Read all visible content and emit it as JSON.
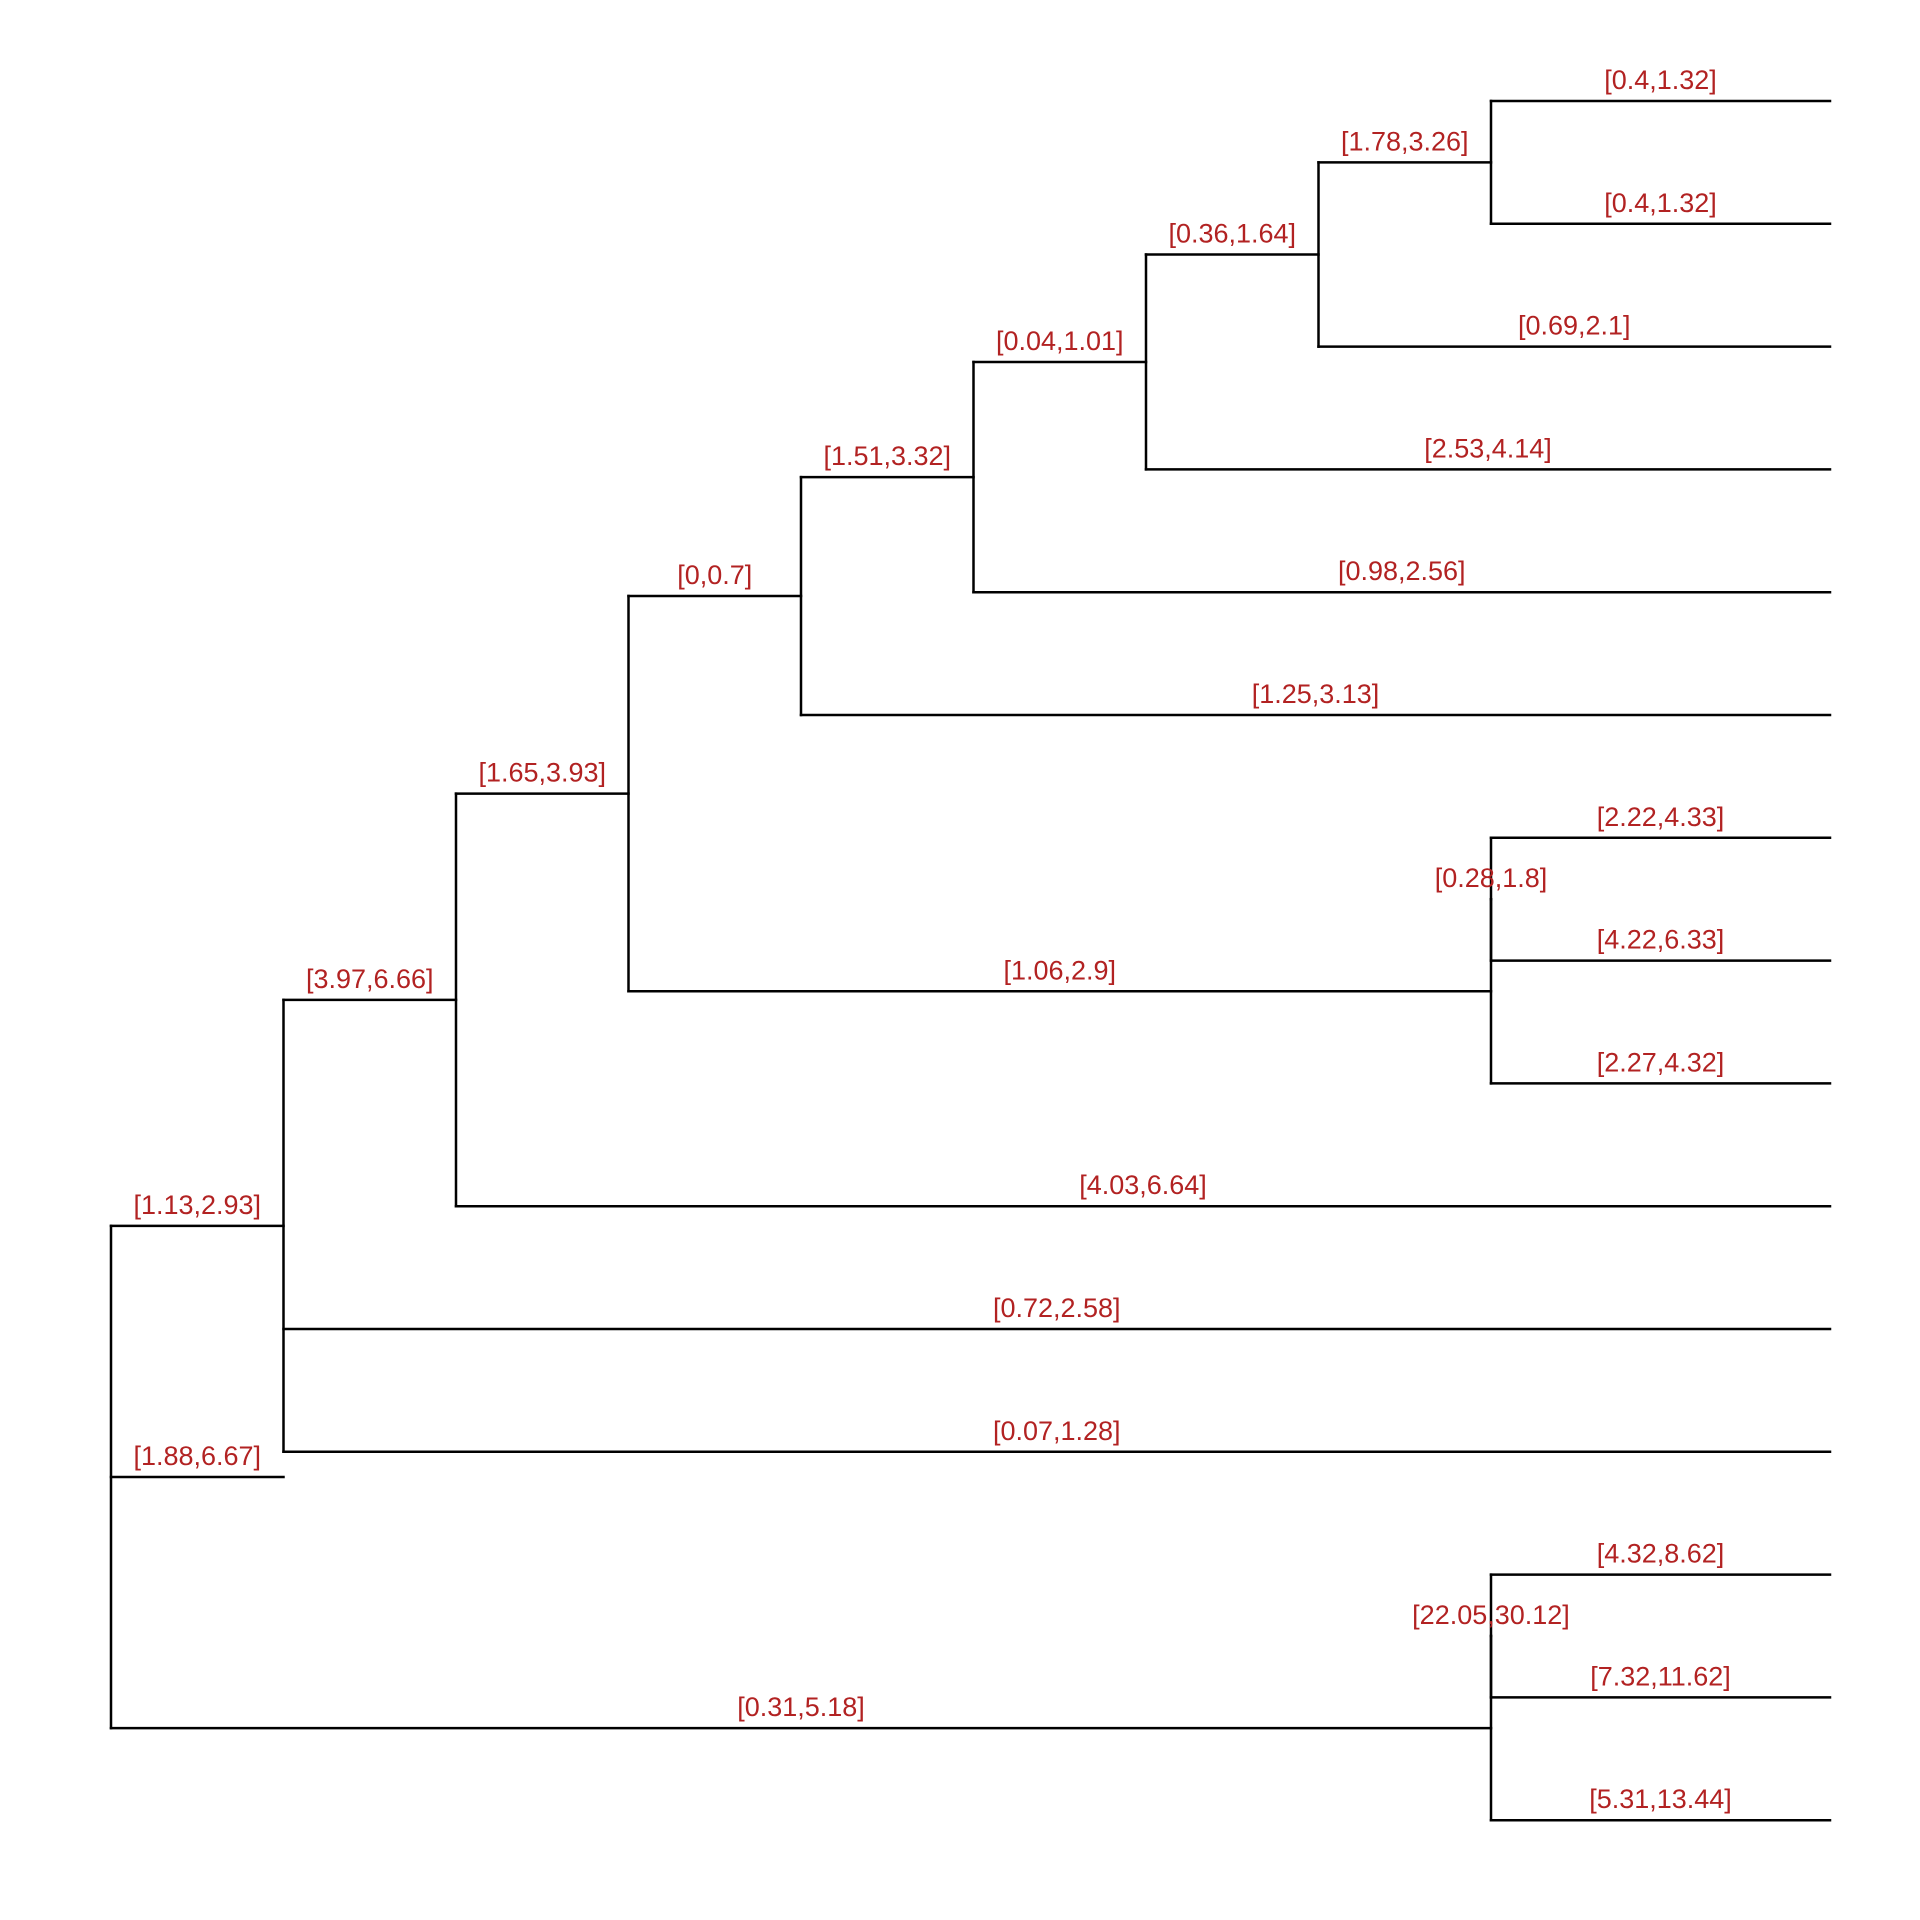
{
  "diagram": {
    "type": "phylogenetic-tree",
    "label_color": "#B22222",
    "line_color": "#000000",
    "nodes": [
      {
        "id": "root",
        "parent": null,
        "depth": 0,
        "label": "[1.88,6.67]"
      },
      {
        "id": "n2",
        "parent": "root",
        "depth": 1,
        "label": "[1.13,2.93]"
      },
      {
        "id": "n3",
        "parent": "n2",
        "depth": 2,
        "label": "[3.97,6.66]"
      },
      {
        "id": "n4",
        "parent": "n3",
        "depth": 3,
        "label": "[1.65,3.93]"
      },
      {
        "id": "n5",
        "parent": "n4",
        "depth": 4,
        "label": "[0,0.7]"
      },
      {
        "id": "n6",
        "parent": "n5",
        "depth": 5,
        "label": "[1.51,3.32]"
      },
      {
        "id": "n7",
        "parent": "n6",
        "depth": 6,
        "label": "[0.04,1.01]"
      },
      {
        "id": "n8",
        "parent": "n7",
        "depth": 7,
        "label": "[0.36,1.64]"
      },
      {
        "id": "n9",
        "parent": "n8",
        "depth": 8,
        "label": "[1.78,3.26]"
      },
      {
        "id": "L1",
        "parent": "n9",
        "leaf": 1,
        "label": "[0.4,1.32]"
      },
      {
        "id": "L2",
        "parent": "n9",
        "leaf": 2,
        "label": "[0.4,1.32]"
      },
      {
        "id": "L3",
        "parent": "n8",
        "leaf": 3,
        "label": "[0.69,2.1]"
      },
      {
        "id": "L4",
        "parent": "n7",
        "leaf": 4,
        "label": "[2.53,4.14]"
      },
      {
        "id": "L5",
        "parent": "n6",
        "leaf": 5,
        "label": "[0.98,2.56]"
      },
      {
        "id": "L6",
        "parent": "n5",
        "leaf": 6,
        "label": "[1.25,3.13]"
      },
      {
        "id": "n10",
        "parent": "n4",
        "depth": 8,
        "label": "[1.06,2.9]"
      },
      {
        "id": "n11",
        "parent": "n10",
        "depth": 8,
        "label": "[0.28,1.8]"
      },
      {
        "id": "L7",
        "parent": "n11",
        "leaf": 7,
        "label": "[2.22,4.33]"
      },
      {
        "id": "L8",
        "parent": "n11",
        "leaf": 8,
        "label": "[4.22,6.33]"
      },
      {
        "id": "L9",
        "parent": "n10",
        "leaf": 9,
        "label": "[2.27,4.32]"
      },
      {
        "id": "L10",
        "parent": "n3",
        "leaf": 10,
        "label": "[4.03,6.64]"
      },
      {
        "id": "L11",
        "parent": "n2",
        "leaf": 11,
        "label": "[0.72,2.58]"
      },
      {
        "id": "L12",
        "parent": "n2",
        "leaf": 12,
        "label": "[0.07,1.28]"
      },
      {
        "id": "n12",
        "parent": "root",
        "depth": 8,
        "label": "[0.31,5.18]"
      },
      {
        "id": "n13",
        "parent": "n12",
        "depth": 8,
        "label": "[22.05,30.12]"
      },
      {
        "id": "L13",
        "parent": "n13",
        "leaf": 13,
        "label": "[4.32,8.62]"
      },
      {
        "id": "L14",
        "parent": "n13",
        "leaf": 14,
        "label": "[7.32,11.62]"
      },
      {
        "id": "L15",
        "parent": "n12",
        "leaf": 15,
        "label": "[5.31,13.44]"
      }
    ]
  }
}
